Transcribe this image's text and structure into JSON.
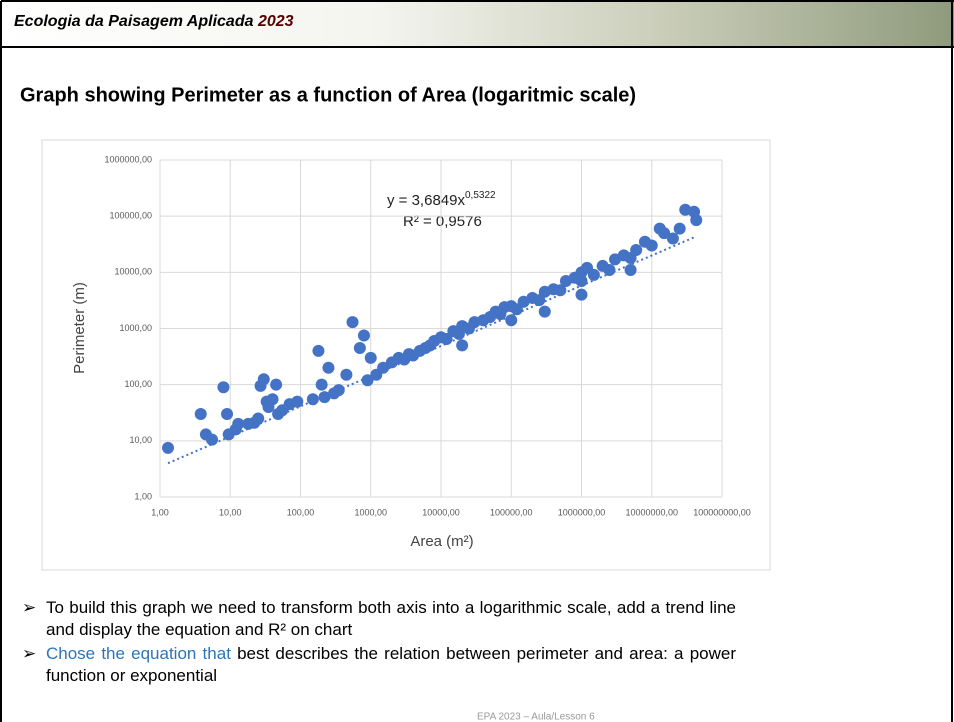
{
  "header": {
    "title": "Ecologia da Paisagem Aplicada",
    "year": "2023"
  },
  "heading": "Graph showing Perimeter as a function of Area (logaritmic scale)",
  "chart_data": {
    "type": "scatter",
    "x_label": "Area (m²)",
    "y_label": "Perimeter (m)",
    "equation": "y = 3,6849x",
    "equation_exponent": "0,5322",
    "r_squared": "R² = 0,9576",
    "color": "#4472c4",
    "xscale": "log",
    "yscale": "log",
    "grid": true,
    "xlim": [
      1,
      100000000
    ],
    "ylim": [
      1,
      1000000
    ],
    "xticks": [
      {
        "value": 1,
        "label": "1,00"
      },
      {
        "value": 10,
        "label": "10,00"
      },
      {
        "value": 100,
        "label": "100,00"
      },
      {
        "value": 1000,
        "label": "1000,00"
      },
      {
        "value": 10000,
        "label": "10000,00"
      },
      {
        "value": 100000,
        "label": "100000,00"
      },
      {
        "value": 1000000,
        "label": "1000000,00"
      },
      {
        "value": 10000000,
        "label": "10000000,00"
      },
      {
        "value": 100000000,
        "label": "100000000,00"
      }
    ],
    "yticks": [
      {
        "value": 1,
        "label": "1,00"
      },
      {
        "value": 10,
        "label": "10,00"
      },
      {
        "value": 100,
        "label": "100,00"
      },
      {
        "value": 1000,
        "label": "1000,00"
      },
      {
        "value": 10000,
        "label": "10000,00"
      },
      {
        "value": 100000,
        "label": "100000,00"
      },
      {
        "value": 1000000,
        "label": "1000000,00"
      }
    ],
    "x": [
      1.3,
      3.8,
      4.5,
      5.5,
      8,
      9,
      9.5,
      12,
      13,
      18,
      22,
      25,
      27,
      30,
      33,
      35,
      40,
      45,
      48,
      55,
      70,
      90,
      150,
      180,
      200,
      220,
      250,
      300,
      350,
      450,
      550,
      700,
      800,
      900,
      1000,
      1200,
      1500,
      2000,
      2500,
      3000,
      3500,
      4000,
      5000,
      6000,
      7000,
      8000,
      10000,
      12000,
      15000,
      18000,
      20000,
      20000,
      25000,
      30000,
      40000,
      50000,
      60000,
      70000,
      80000,
      100000,
      100000,
      120000,
      150000,
      200000,
      250000,
      300000,
      300000,
      400000,
      500000,
      600000,
      800000,
      1000000,
      1000000,
      1000000,
      1200000,
      1500000,
      2000000,
      2500000,
      3000000,
      4000000,
      5000000,
      5000000,
      6000000,
      8000000,
      10000000,
      13000000,
      15000000,
      20000000,
      25000000,
      30000000,
      40000000,
      43000000
    ],
    "values": [
      7.5,
      30,
      13,
      10.5,
      90,
      30,
      13,
      16,
      20,
      20,
      21,
      25,
      95,
      125,
      50,
      40,
      55,
      100,
      30,
      35,
      45,
      50,
      55,
      400,
      100,
      60,
      200,
      70,
      80,
      150,
      1300,
      450,
      750,
      120,
      300,
      150,
      200,
      250,
      300,
      280,
      350,
      330,
      400,
      450,
      500,
      600,
      700,
      650,
      900,
      800,
      1100,
      500,
      1000,
      1300,
      1400,
      1600,
      2000,
      1800,
      2400,
      2500,
      1400,
      2200,
      3000,
      3500,
      3200,
      4500,
      2000,
      5000,
      4800,
      7000,
      8000,
      10000,
      7000,
      4000,
      12000,
      9000,
      13000,
      11000,
      17000,
      20000,
      18000,
      11000,
      25000,
      35000,
      30000,
      60000,
      50000,
      40000,
      60000,
      130000,
      120000,
      85000
    ],
    "trendline": {
      "x": [
        1.3,
        40000000
      ],
      "values": [
        4,
        42000
      ]
    }
  },
  "bullets": [
    {
      "text": "To build this graph we need to transform both axis into a logarithmic scale, add a trend line and display the equation and R² on chart"
    },
    {
      "highlight": "Chose the equation that",
      "text": " best describes the relation between perimeter and area: a power function or exponential"
    }
  ],
  "footer": "EPA 2023 – Aula/Lesson 6"
}
